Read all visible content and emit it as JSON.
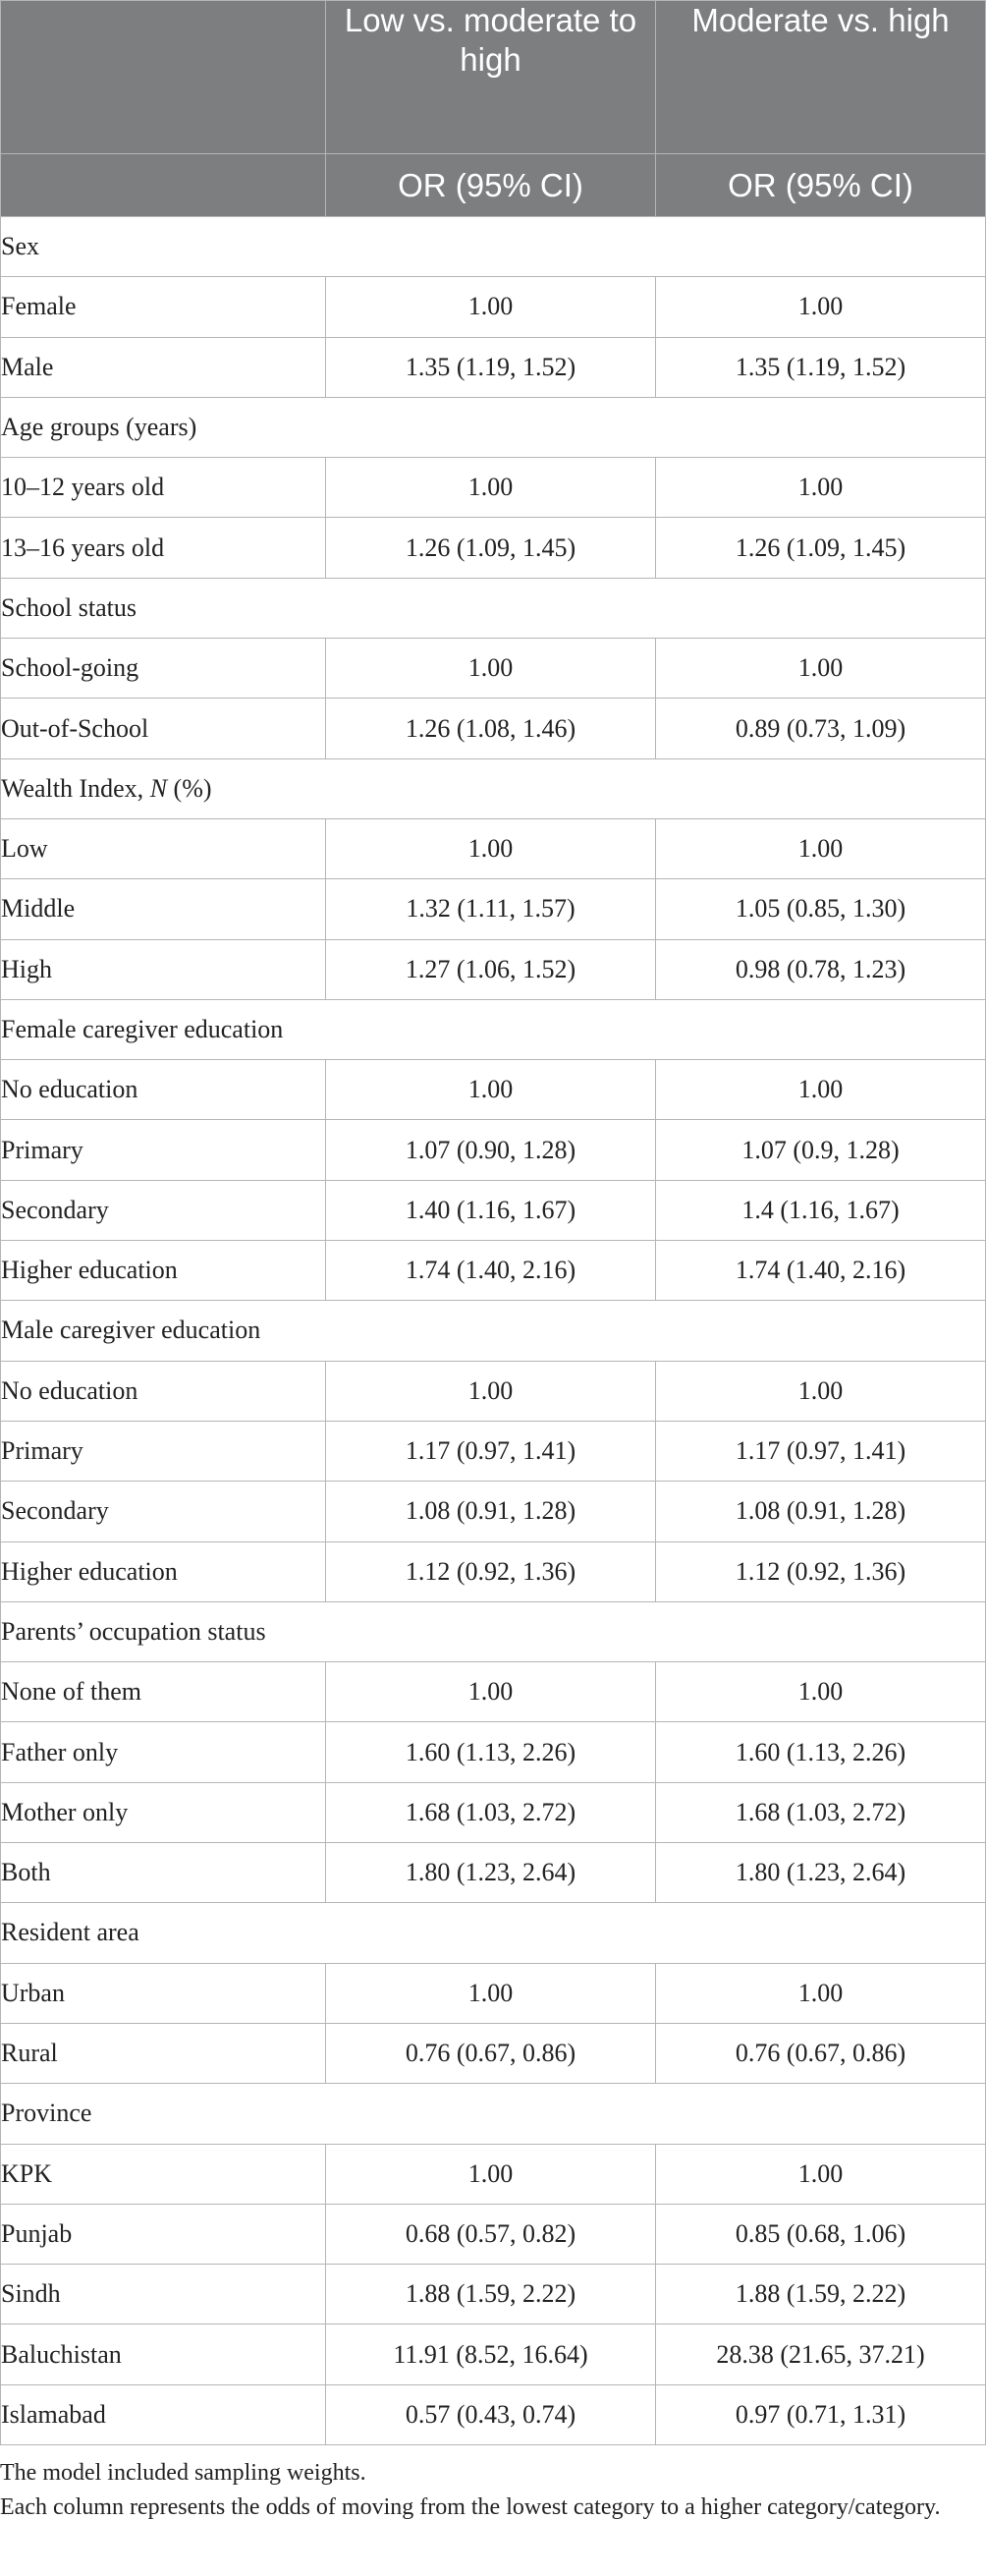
{
  "header": {
    "col1": "",
    "col2": "Low vs. moderate to high",
    "col3": "Moderate vs. high",
    "sub_col2": "OR (95% CI)",
    "sub_col3": "OR (95% CI)"
  },
  "rows": [
    {
      "type": "group",
      "label": "Sex"
    },
    {
      "type": "item",
      "label": "Female",
      "v1": "1.00",
      "v2": "1.00"
    },
    {
      "type": "item",
      "label": "Male",
      "v1": "1.35 (1.19, 1.52)",
      "v2": "1.35 (1.19, 1.52)"
    },
    {
      "type": "group",
      "label": "Age groups (years)"
    },
    {
      "type": "item",
      "label": "10–12 years old",
      "v1": "1.00",
      "v2": "1.00"
    },
    {
      "type": "item",
      "label": "13–16 years old",
      "v1": "1.26 (1.09, 1.45)",
      "v2": "1.26 (1.09, 1.45)"
    },
    {
      "type": "group",
      "label": "School status"
    },
    {
      "type": "item",
      "label": "School-going",
      "v1": "1.00",
      "v2": "1.00"
    },
    {
      "type": "item",
      "label": "Out-of-School",
      "v1": "1.26 (1.08, 1.46)",
      "v2": "0.89 (0.73, 1.09)"
    },
    {
      "type": "group",
      "label": "Wealth Index, ",
      "label_italic": "N",
      "label_after": " (%)"
    },
    {
      "type": "item",
      "label": "Low",
      "v1": "1.00",
      "v2": "1.00"
    },
    {
      "type": "item",
      "label": "Middle",
      "v1": "1.32 (1.11, 1.57)",
      "v2": "1.05 (0.85, 1.30)"
    },
    {
      "type": "item",
      "label": "High",
      "v1": "1.27 (1.06, 1.52)",
      "v2": "0.98 (0.78, 1.23)"
    },
    {
      "type": "group",
      "label": "Female caregiver education"
    },
    {
      "type": "item",
      "label": "No education",
      "v1": "1.00",
      "v2": "1.00"
    },
    {
      "type": "item",
      "label": "Primary",
      "v1": "1.07 (0.90, 1.28)",
      "v2": "1.07 (0.9, 1.28)"
    },
    {
      "type": "item",
      "label": "Secondary",
      "v1": "1.40 (1.16, 1.67)",
      "v2": "1.4 (1.16, 1.67)"
    },
    {
      "type": "item",
      "label": "Higher education",
      "v1": "1.74 (1.40, 2.16)",
      "v2": "1.74 (1.40, 2.16)"
    },
    {
      "type": "group",
      "label": "Male caregiver education"
    },
    {
      "type": "item",
      "label": "No education",
      "v1": "1.00",
      "v2": "1.00"
    },
    {
      "type": "item",
      "label": "Primary",
      "v1": "1.17 (0.97, 1.41)",
      "v2": "1.17 (0.97, 1.41)"
    },
    {
      "type": "item",
      "label": "Secondary",
      "v1": "1.08 (0.91, 1.28)",
      "v2": "1.08 (0.91, 1.28)"
    },
    {
      "type": "item",
      "label": "Higher education",
      "v1": "1.12 (0.92, 1.36)",
      "v2": "1.12 (0.92, 1.36)"
    },
    {
      "type": "group",
      "label": "Parents’ occupation status"
    },
    {
      "type": "item",
      "label": "None of them",
      "v1": "1.00",
      "v2": "1.00"
    },
    {
      "type": "item",
      "label": "Father only",
      "v1": "1.60 (1.13, 2.26)",
      "v2": "1.60 (1.13, 2.26)"
    },
    {
      "type": "item",
      "label": "Mother only",
      "v1": "1.68 (1.03, 2.72)",
      "v2": "1.68 (1.03, 2.72)"
    },
    {
      "type": "item",
      "label": "Both",
      "v1": "1.80 (1.23, 2.64)",
      "v2": "1.80 (1.23, 2.64)"
    },
    {
      "type": "group",
      "label": "Resident area"
    },
    {
      "type": "item",
      "label": "Urban",
      "v1": "1.00",
      "v2": "1.00"
    },
    {
      "type": "item",
      "label": "Rural",
      "v1": "0.76 (0.67, 0.86)",
      "v2": "0.76 (0.67, 0.86)"
    },
    {
      "type": "group",
      "label": "Province"
    },
    {
      "type": "item",
      "label": "KPK",
      "v1": "1.00",
      "v2": "1.00"
    },
    {
      "type": "item",
      "label": "Punjab",
      "v1": "0.68 (0.57, 0.82)",
      "v2": "0.85 (0.68, 1.06)"
    },
    {
      "type": "item",
      "label": "Sindh",
      "v1": "1.88 (1.59, 2.22)",
      "v2": "1.88 (1.59, 2.22)"
    },
    {
      "type": "item",
      "label": "Baluchistan",
      "v1": "11.91 (8.52, 16.64)",
      "v2": "28.38 (21.65, 37.21)"
    },
    {
      "type": "item",
      "label": "Islamabad",
      "v1": "0.57 (0.43, 0.74)",
      "v2": "0.97 (0.71, 1.31)"
    }
  ],
  "footnotes": {
    "line1": "The model included sampling weights.",
    "line2": "Each column represents the odds of moving from the lowest category to a higher category/category."
  }
}
